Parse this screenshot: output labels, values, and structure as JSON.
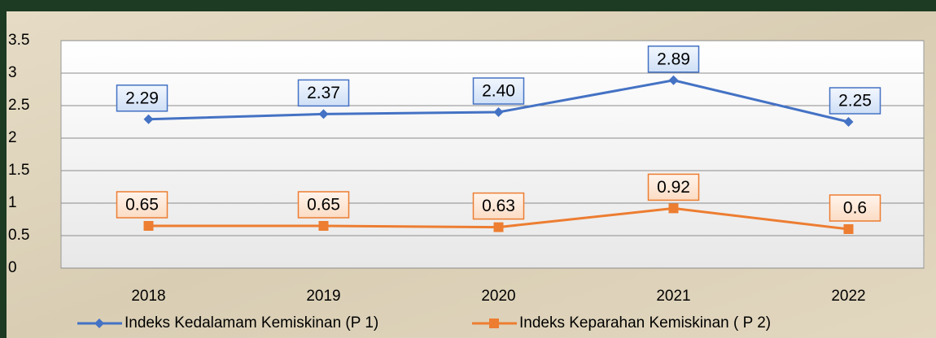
{
  "chart_data": {
    "type": "line",
    "categories": [
      "2018",
      "2019",
      "2020",
      "2021",
      "2022"
    ],
    "series": [
      {
        "name": "Indeks Kedalamam Kemiskinan (P 1)",
        "color": "#4472c4",
        "marker": "diamond",
        "values": [
          2.29,
          2.37,
          2.4,
          2.89,
          2.25
        ],
        "value_labels": [
          "2.29",
          "2.37",
          "2.40",
          "2.89",
          "2.25"
        ]
      },
      {
        "name": "Indeks Keparahan Kemiskinan ( P 2)",
        "color": "#ed7d31",
        "marker": "square",
        "values": [
          0.65,
          0.65,
          0.63,
          0.92,
          0.6
        ]
      }
    ],
    "ylim": [
      0,
      3.5
    ],
    "yticks": [
      0,
      0.5,
      1,
      1.5,
      2,
      2.5,
      3,
      3.5
    ],
    "grid": true,
    "legend": "bottom"
  }
}
